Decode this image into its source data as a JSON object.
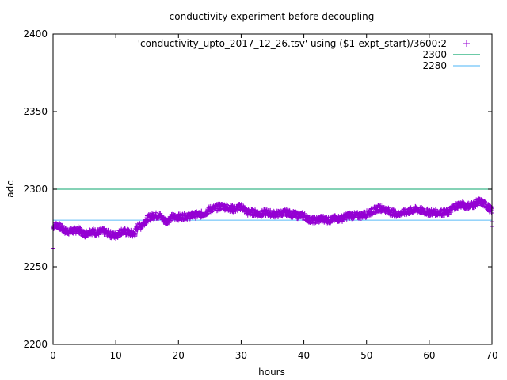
{
  "chart_data": {
    "type": "scatter",
    "title": "conductivity experiment before decoupling",
    "xlabel": "hours",
    "ylabel": "adc",
    "xlim": [
      0,
      70
    ],
    "ylim": [
      2200,
      2400
    ],
    "xticks": [
      0,
      10,
      20,
      30,
      40,
      50,
      60,
      70
    ],
    "yticks": [
      2200,
      2250,
      2300,
      2350,
      2400
    ],
    "grid": false,
    "legend_position": "top-right",
    "series": [
      {
        "name": "'conductivity_upto_2017_12_26.tsv' using ($1-expt_start)/3600:2",
        "style": "points",
        "marker": "plus",
        "color": "#9400d3",
        "x": [
          0,
          0.5,
          1,
          2,
          3,
          4,
          5,
          6,
          7,
          8,
          9,
          10,
          11,
          12,
          13,
          13.5,
          14,
          15,
          16,
          17,
          18,
          19,
          20,
          22,
          24,
          25,
          26,
          27,
          28,
          29,
          30,
          31,
          32,
          33,
          34,
          35,
          36,
          37,
          38,
          39,
          40,
          41,
          42,
          43,
          44,
          45,
          46,
          47,
          48,
          49,
          50,
          51,
          52,
          53,
          54,
          55,
          56,
          57,
          58,
          59,
          60,
          61,
          62,
          63,
          64,
          65,
          66,
          67,
          68,
          69,
          70
        ],
        "y": [
          2276,
          2277,
          2276,
          2273,
          2273,
          2274,
          2271,
          2273,
          2272,
          2273,
          2271,
          2270,
          2273,
          2272,
          2271,
          2276,
          2276,
          2281,
          2283,
          2283,
          2279,
          2282,
          2282,
          2283,
          2284,
          2287,
          2288,
          2289,
          2288,
          2287,
          2289,
          2285,
          2285,
          2284,
          2285,
          2284,
          2284,
          2285,
          2284,
          2283,
          2283,
          2280,
          2280,
          2281,
          2280,
          2281,
          2281,
          2283,
          2283,
          2283,
          2284,
          2286,
          2288,
          2287,
          2285,
          2284,
          2285,
          2286,
          2287,
          2286,
          2285,
          2285,
          2285,
          2285,
          2289,
          2290,
          2289,
          2290,
          2292,
          2290,
          2286
        ]
      },
      {
        "name": "2300",
        "style": "line",
        "color": "#3cb88a",
        "constant": 2300
      },
      {
        "name": "2280",
        "style": "line",
        "color": "#87cefa",
        "constant": 2280
      }
    ],
    "outliers": [
      {
        "x": 0,
        "y": 2262
      },
      {
        "x": 0,
        "y": 2264
      },
      {
        "x": 70,
        "y": 2276
      },
      {
        "x": 70,
        "y": 2279
      }
    ]
  }
}
